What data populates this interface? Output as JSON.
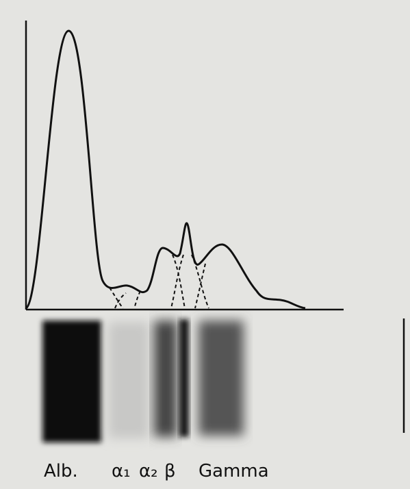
{
  "labels": [
    "Alb.",
    "α₁",
    "α₂",
    "β",
    "Gamma"
  ]
}
